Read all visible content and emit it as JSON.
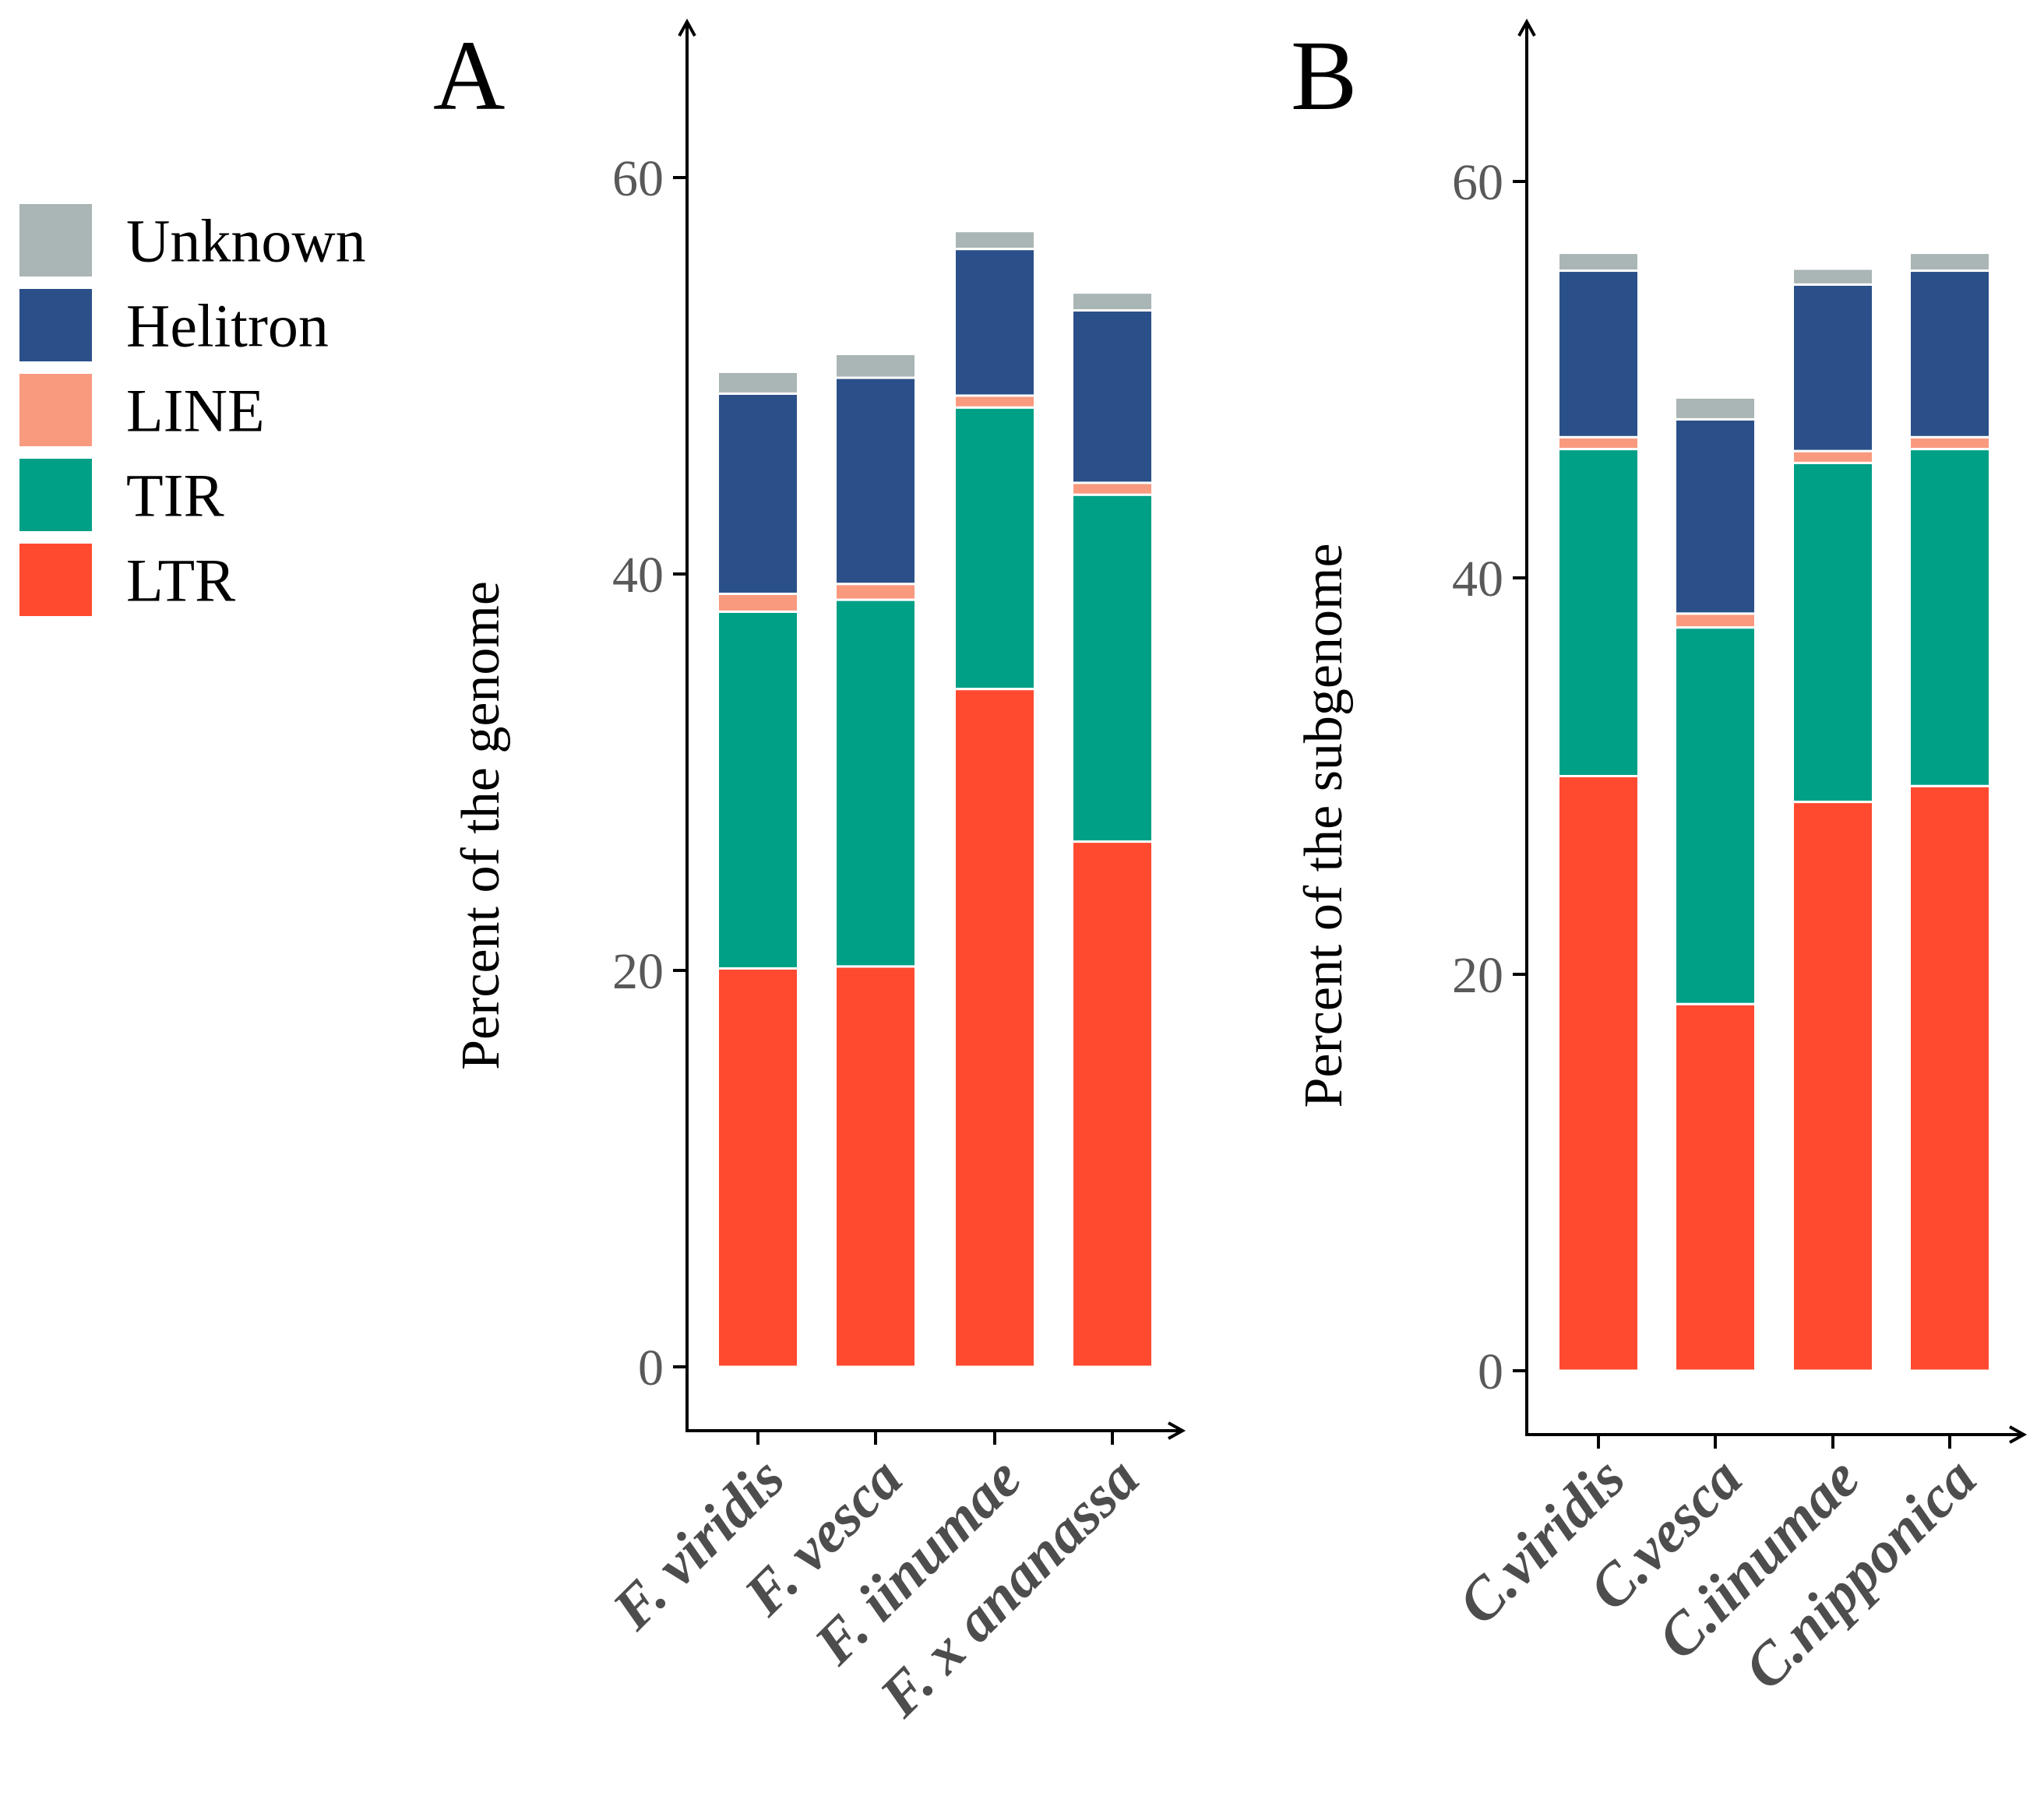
{
  "legend": {
    "items": [
      {
        "name": "Unknown",
        "color": "#aab5b5"
      },
      {
        "name": "Helitron",
        "color": "#2b5089"
      },
      {
        "name": "LINE",
        "color": "#f99a7f"
      },
      {
        "name": "TIR",
        "color": "#00a087"
      },
      {
        "name": "LTR",
        "color": "#ff4a30"
      }
    ]
  },
  "chart_data": [
    {
      "type": "bar",
      "stacked": true,
      "panel": "A",
      "title": "",
      "xlabel": "",
      "ylabel": "Percent of the genome",
      "ylim": [
        0,
        68
      ],
      "yticks": [
        0,
        20,
        40,
        60
      ],
      "categories": [
        "F. viridis",
        "F. vesca",
        "F. iinumae",
        "F. x ananassa"
      ],
      "series": [
        {
          "name": "LTR",
          "values": [
            20.1,
            20.2,
            34.2,
            26.5
          ]
        },
        {
          "name": "TIR",
          "values": [
            18.0,
            18.5,
            14.2,
            17.5
          ]
        },
        {
          "name": "LINE",
          "values": [
            0.9,
            0.8,
            0.6,
            0.6
          ]
        },
        {
          "name": "Helitron",
          "values": [
            10.1,
            10.4,
            7.4,
            8.7
          ]
        },
        {
          "name": "Unknown",
          "values": [
            1.1,
            1.2,
            0.9,
            0.9
          ]
        }
      ]
    },
    {
      "type": "bar",
      "stacked": true,
      "panel": "B",
      "title": "",
      "xlabel": "",
      "ylabel": "Percent of the subgenome",
      "ylim": [
        0,
        68
      ],
      "yticks": [
        0,
        20,
        40,
        60
      ],
      "categories": [
        "C.viridis",
        "C.vesca",
        "C.iinumae",
        "C.nipponica"
      ],
      "series": [
        {
          "name": "LTR",
          "values": [
            30.0,
            18.5,
            28.7,
            29.5
          ]
        },
        {
          "name": "TIR",
          "values": [
            16.5,
            19.0,
            17.1,
            17.0
          ]
        },
        {
          "name": "LINE",
          "values": [
            0.6,
            0.7,
            0.6,
            0.6
          ]
        },
        {
          "name": "Helitron",
          "values": [
            8.4,
            9.8,
            8.4,
            8.4
          ]
        },
        {
          "name": "Unknown",
          "values": [
            0.9,
            1.1,
            0.8,
            0.9
          ]
        }
      ]
    }
  ]
}
